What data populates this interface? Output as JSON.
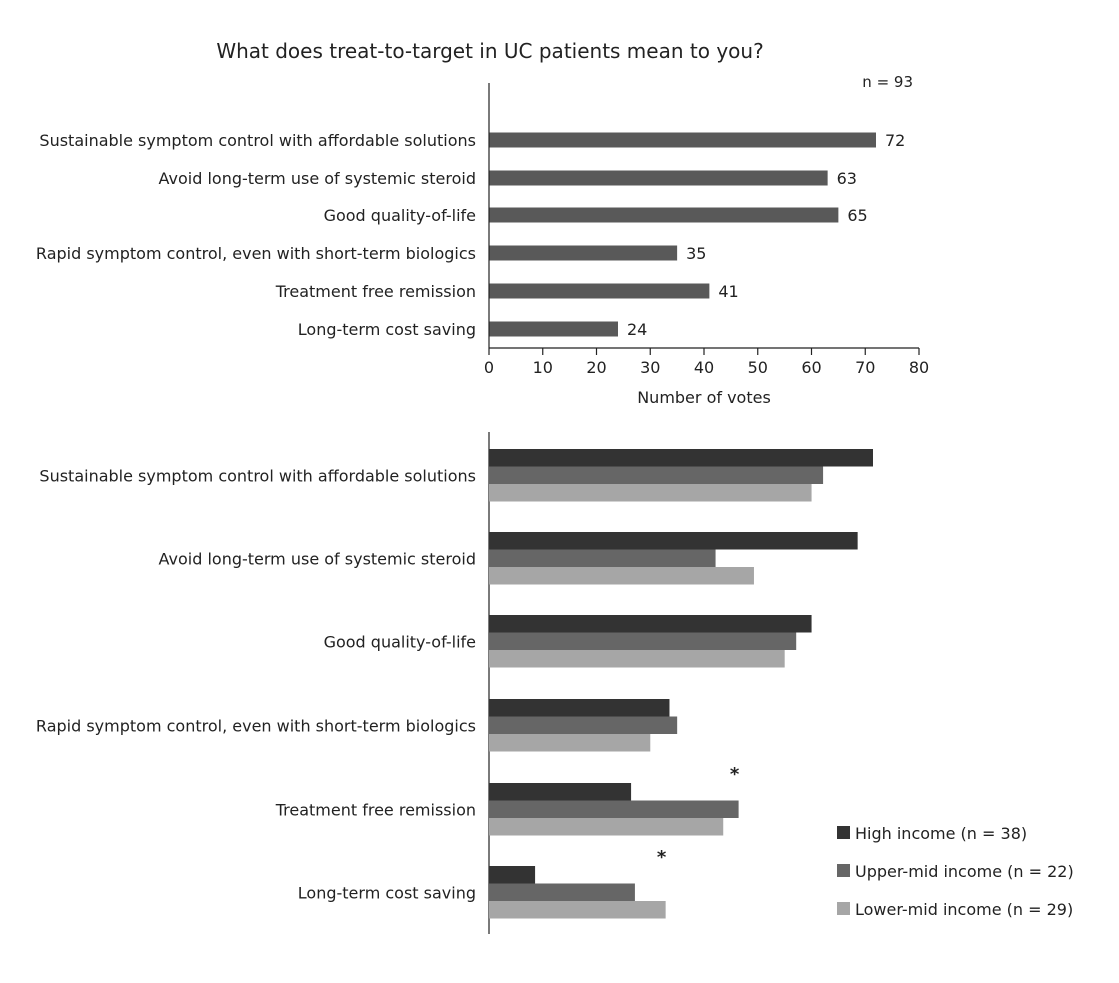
{
  "chart_data": [
    {
      "type": "bar",
      "orientation": "horizontal",
      "title": "What does treat-to-target in UC patients mean to you?",
      "sample_note": "n = 93",
      "categories": [
        "Sustainable symptom control with affordable solutions",
        "Avoid long-term use of systemic steroid",
        "Good quality-of-life",
        "Rapid symptom control, even with short-term biologics",
        "Treatment free remission",
        "Long-term cost saving"
      ],
      "values": [
        72,
        63,
        65,
        35,
        41,
        24
      ],
      "value_labels": [
        "72",
        "63",
        "65",
        "35",
        "41",
        "24"
      ],
      "xlabel": "Number of votes",
      "xlim": [
        0,
        80
      ],
      "xticks": [
        0,
        10,
        20,
        30,
        40,
        50,
        60,
        70,
        80
      ],
      "xtick_labels": [
        "0",
        "10",
        "20",
        "30",
        "40",
        "50",
        "60",
        "70",
        "80"
      ],
      "bar_color": "#595959"
    },
    {
      "type": "bar",
      "orientation": "horizontal",
      "categories": [
        "Sustainable symptom control with affordable solutions",
        "Avoid long-term use of systemic steroid",
        "Good quality-of-life",
        "Rapid symptom control, even with short-term biologics",
        "Treatment free remission",
        "Long-term cost saving"
      ],
      "unit": "percent of respondents within income group (approximate, no axis shown)",
      "series": [
        {
          "name": "High income (n = 38)",
          "color": "#333333",
          "values": [
            100,
            96,
            84,
            47,
            37,
            12
          ]
        },
        {
          "name": "Upper-mid income (n = 22)",
          "color": "#666666",
          "values": [
            87,
            59,
            80,
            49,
            65,
            38
          ]
        },
        {
          "name": "Lower-mid income (n = 29)",
          "color": "#a6a6a6",
          "values": [
            84,
            69,
            77,
            42,
            61,
            46
          ]
        }
      ],
      "xlim": [
        0,
        100
      ],
      "annotations": [
        {
          "text": "*",
          "category": "Treatment free remission"
        },
        {
          "text": "*",
          "category": "Long-term cost saving"
        }
      ],
      "legend_position": "bottom-right"
    }
  ]
}
